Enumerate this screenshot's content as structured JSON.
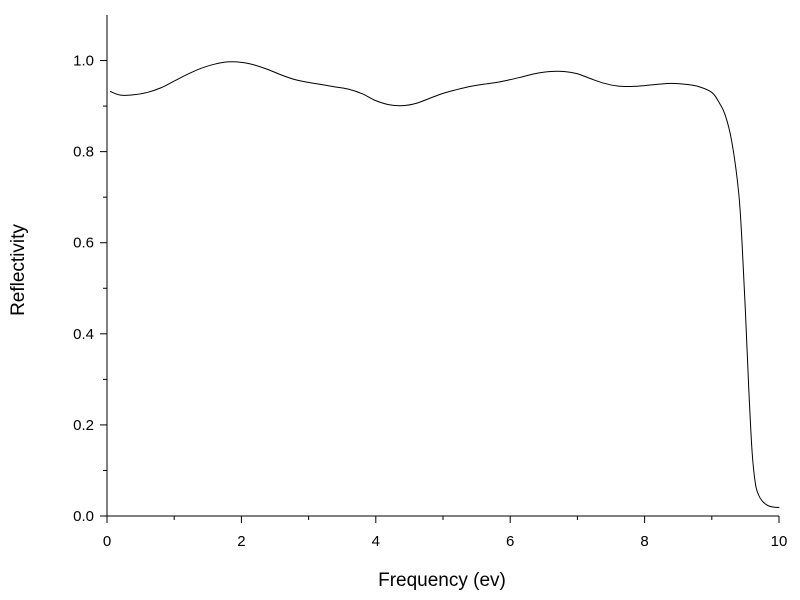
{
  "chart_data": {
    "type": "line",
    "title": "",
    "xlabel": "Frequency (ev)",
    "ylabel": "Reflectivity",
    "xlim": [
      0,
      10
    ],
    "ylim": [
      0,
      1.1
    ],
    "x_ticks": [
      0,
      2,
      4,
      6,
      8,
      10
    ],
    "x_minor_ticks": [
      1,
      3,
      5,
      7,
      9
    ],
    "x_tick_labels": [
      "0",
      "2",
      "4",
      "6",
      "8",
      "10"
    ],
    "y_ticks": [
      0.0,
      0.2,
      0.4,
      0.6,
      0.8,
      1.0
    ],
    "y_minor_ticks": [
      0.1,
      0.3,
      0.5,
      0.7,
      0.9
    ],
    "y_tick_labels": [
      "0.0",
      "0.2",
      "0.4",
      "0.6",
      "0.8",
      "1.0"
    ],
    "grid": false,
    "legend": "none",
    "line_color": "#000000",
    "series": [
      {
        "x": [
          0.05,
          0.2,
          0.4,
          0.6,
          0.8,
          1.0,
          1.2,
          1.4,
          1.6,
          1.8,
          2.0,
          2.2,
          2.4,
          2.6,
          2.8,
          3.0,
          3.2,
          3.4,
          3.6,
          3.8,
          4.0,
          4.2,
          4.4,
          4.6,
          4.8,
          5.0,
          5.2,
          5.4,
          5.6,
          5.8,
          6.0,
          6.2,
          6.4,
          6.6,
          6.8,
          7.0,
          7.2,
          7.4,
          7.6,
          7.8,
          8.0,
          8.2,
          8.4,
          8.6,
          8.8,
          9.0,
          9.1,
          9.2,
          9.3,
          9.4,
          9.45,
          9.5,
          9.55,
          9.6,
          9.65,
          9.7,
          9.75,
          9.8,
          9.85,
          9.9,
          9.95,
          10.0
        ],
        "y": [
          0.932,
          0.924,
          0.925,
          0.93,
          0.94,
          0.955,
          0.97,
          0.983,
          0.992,
          0.997,
          0.996,
          0.99,
          0.98,
          0.968,
          0.958,
          0.952,
          0.947,
          0.942,
          0.937,
          0.927,
          0.912,
          0.903,
          0.901,
          0.906,
          0.917,
          0.928,
          0.936,
          0.943,
          0.948,
          0.952,
          0.958,
          0.965,
          0.972,
          0.976,
          0.976,
          0.971,
          0.96,
          0.95,
          0.944,
          0.943,
          0.945,
          0.948,
          0.95,
          0.948,
          0.943,
          0.93,
          0.91,
          0.88,
          0.82,
          0.71,
          0.6,
          0.45,
          0.28,
          0.14,
          0.07,
          0.045,
          0.033,
          0.026,
          0.022,
          0.02,
          0.019,
          0.019
        ]
      }
    ]
  }
}
